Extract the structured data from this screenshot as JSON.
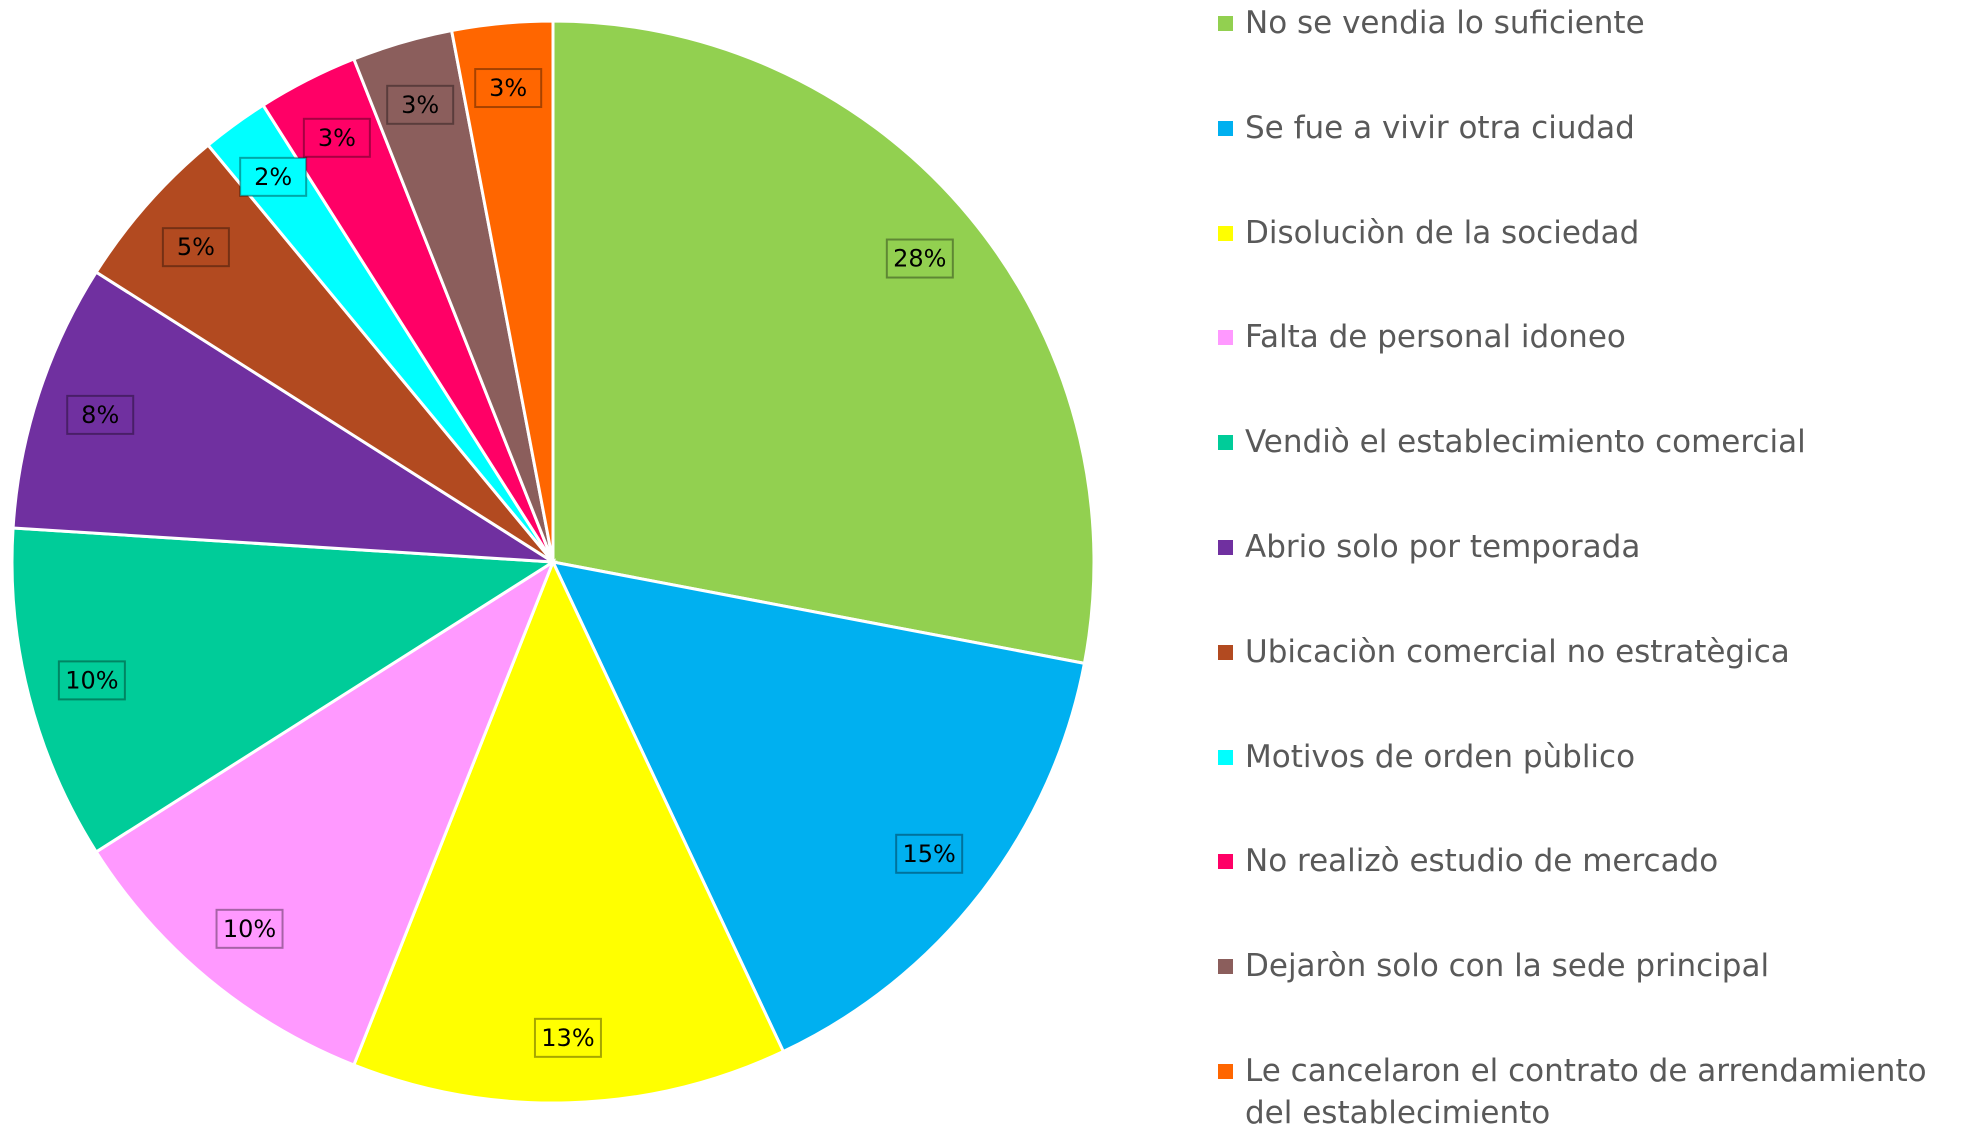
{
  "chart_data": {
    "type": "pie",
    "categories": [
      "No se vendia lo suficiente",
      "Se fue a vivir  otra ciudad",
      "Disoluciòn de la sociedad",
      "Falta de personal idoneo",
      "Vendiò el establecimiento comercial",
      "Abrio  solo por temporada",
      "Ubicaciòn comercial no estratègica",
      "Motivos de orden pùblico",
      "No realizò estudio de mercado",
      "Dejaròn solo con la sede principal",
      "Le cancelaron el contrato de arrendamiento del establecimiento"
    ],
    "values": [
      28,
      15,
      13,
      10,
      10,
      8,
      5,
      2,
      3,
      3,
      3
    ],
    "value_labels": [
      "28%",
      "15%",
      "13%",
      "10%",
      "10%",
      "8%",
      "5%",
      "2%",
      "3%",
      "3%",
      "3%"
    ],
    "colors": [
      "#92d050",
      "#00b0f0",
      "#ffff00",
      "#ff99ff",
      "#00cc99",
      "#7030a0",
      "#b24a20",
      "#00ffff",
      "#ff0066",
      "#8b5e5c",
      "#ff6600"
    ],
    "legend": "right"
  }
}
